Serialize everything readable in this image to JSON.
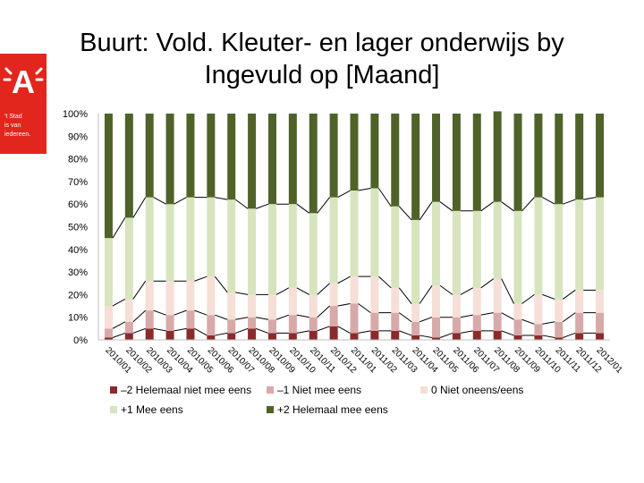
{
  "title": "Buurt: Vold. Kleuter- en lager onderwijs by\nIngevuld op [Maand]",
  "logo": {
    "letter": "A",
    "tagline": "'t Stad\nis van\niedereen.",
    "color": "#e2261d"
  },
  "chart_data": {
    "type": "bar",
    "stacked": true,
    "percent": true,
    "categories": [
      "2010/01",
      "2010/02",
      "2010/03",
      "2010/04",
      "2010/05",
      "2010/06",
      "2010/07",
      "2010/08",
      "2010/09",
      "2010/10",
      "2010/11",
      "2010/12",
      "2011/01",
      "2011/02",
      "2011/03",
      "2011/04",
      "2011/05",
      "2011/06",
      "2011/07",
      "2011/08",
      "2011/09",
      "2011/10",
      "2011/11",
      "2011/12",
      "2012/01"
    ],
    "y_ticks": [
      "0%",
      "10%",
      "20%",
      "30%",
      "40%",
      "50%",
      "60%",
      "70%",
      "80%",
      "90%",
      "100%"
    ],
    "ylim": [
      0,
      100
    ],
    "series": [
      {
        "name": "–2 Helemaal niet mee eens",
        "color": "#8b2a2a",
        "values": [
          1,
          3,
          5,
          4,
          5,
          2,
          3,
          5,
          3,
          3,
          4,
          6,
          3,
          4,
          4,
          2,
          1,
          3,
          4,
          4,
          2,
          2,
          1,
          3,
          3
        ]
      },
      {
        "name": "–1 Niet mee eens",
        "color": "#d7a9a9",
        "values": [
          4,
          5,
          8,
          7,
          8,
          9,
          6,
          5,
          6,
          8,
          6,
          9,
          13,
          8,
          8,
          6,
          9,
          7,
          7,
          8,
          7,
          5,
          7,
          9,
          9
        ]
      },
      {
        "name": "0 Niet oneens/eens",
        "color": "#f6dfd6",
        "values": [
          10,
          10,
          13,
          15,
          13,
          17,
          12,
          10,
          11,
          12,
          10,
          10,
          12,
          16,
          11,
          8,
          14,
          10,
          12,
          15,
          7,
          13,
          10,
          10,
          10
        ]
      },
      {
        "name": "+1 Mee eens",
        "color": "#d7e4bd",
        "values": [
          30,
          36,
          37,
          34,
          37,
          35,
          41,
          38,
          40,
          37,
          36,
          38,
          38,
          39,
          36,
          37,
          37,
          37,
          34,
          34,
          41,
          43,
          42,
          40,
          41
        ]
      },
      {
        "name": "+2 Helemaal mee eens",
        "color": "#4f6228",
        "values": [
          55,
          46,
          37,
          40,
          37,
          37,
          38,
          42,
          40,
          40,
          44,
          37,
          34,
          33,
          41,
          47,
          39,
          43,
          43,
          40,
          43,
          37,
          40,
          38,
          37
        ]
      }
    ],
    "legend": "bottom",
    "grid": false
  }
}
